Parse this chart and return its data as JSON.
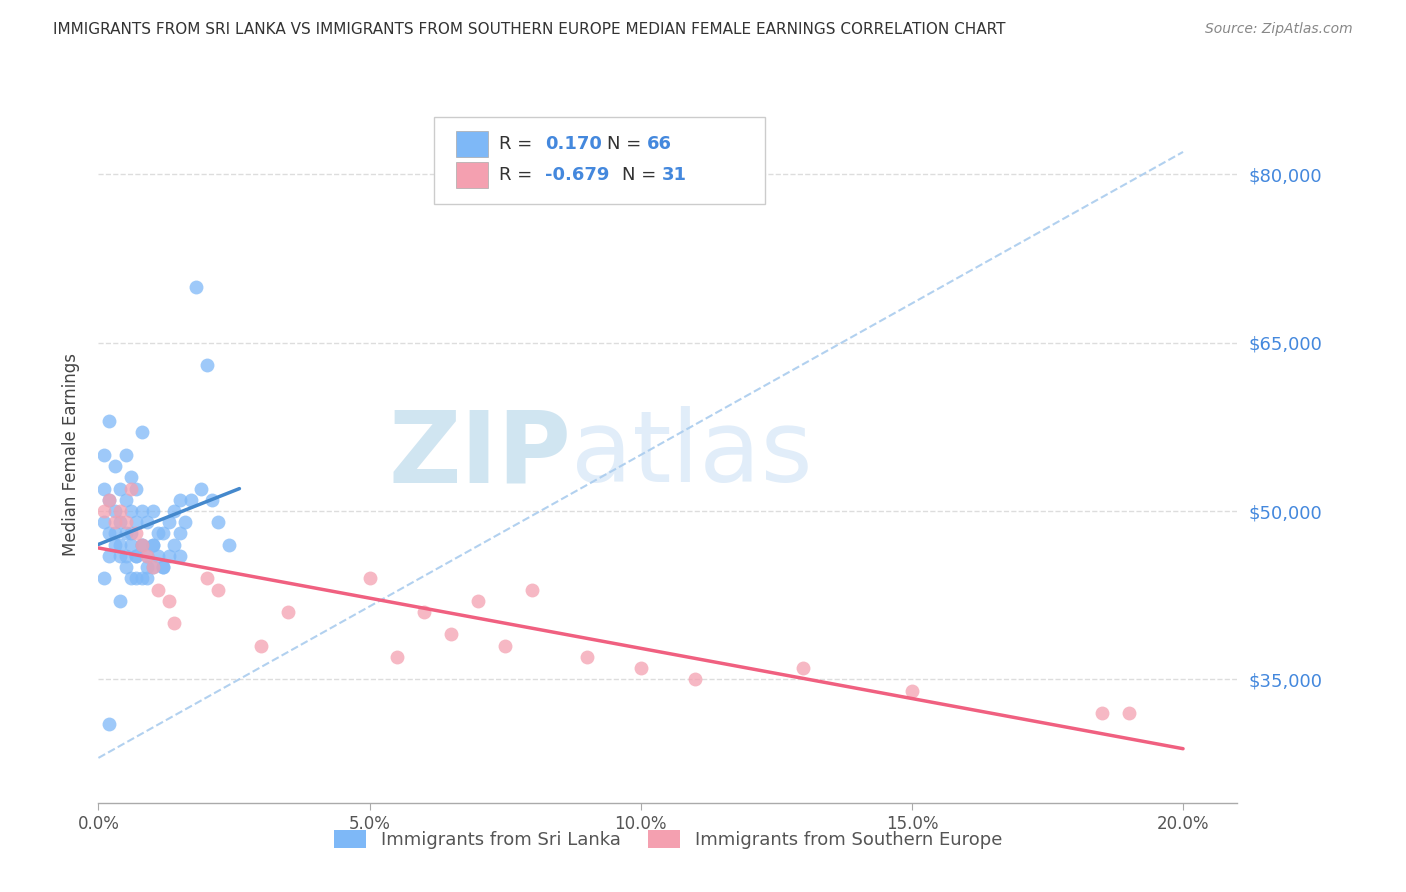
{
  "title": "IMMIGRANTS FROM SRI LANKA VS IMMIGRANTS FROM SOUTHERN EUROPE MEDIAN FEMALE EARNINGS CORRELATION CHART",
  "source": "Source: ZipAtlas.com",
  "ylabel": "Median Female Earnings",
  "xlim": [
    0.0,
    0.21
  ],
  "ylim": [
    24000,
    86000
  ],
  "y_ticks": [
    35000,
    50000,
    65000,
    80000
  ],
  "y_tick_labels": [
    "$35,000",
    "$50,000",
    "$65,000",
    "$80,000"
  ],
  "x_ticks": [
    0.0,
    0.05,
    0.1,
    0.15,
    0.2
  ],
  "x_tick_labels": [
    "0.0%",
    "5.0%",
    "10.0%",
    "15.0%",
    "20.0%"
  ],
  "sri_lanka_color": "#7EB8F7",
  "southern_europe_color": "#F4A0B0",
  "sri_lanka_line_color": "#4488CC",
  "southern_europe_line_color": "#F06080",
  "grey_line_color": "#AACCEE",
  "accent_color": "#4488DD",
  "title_color": "#333333",
  "source_color": "#888888",
  "legend1_label": "Immigrants from Sri Lanka",
  "legend2_label": "Immigrants from Southern Europe",
  "watermark_text": "ZIPatlas",
  "sri_lanka_x": [
    0.001,
    0.001,
    0.001,
    0.002,
    0.002,
    0.002,
    0.003,
    0.003,
    0.003,
    0.004,
    0.004,
    0.004,
    0.005,
    0.005,
    0.005,
    0.005,
    0.006,
    0.006,
    0.006,
    0.006,
    0.007,
    0.007,
    0.007,
    0.007,
    0.008,
    0.008,
    0.008,
    0.009,
    0.009,
    0.009,
    0.01,
    0.01,
    0.01,
    0.011,
    0.011,
    0.012,
    0.012,
    0.013,
    0.013,
    0.014,
    0.014,
    0.015,
    0.015,
    0.016,
    0.017,
    0.018,
    0.019,
    0.02,
    0.021,
    0.022,
    0.024,
    0.001,
    0.002,
    0.003,
    0.004,
    0.005,
    0.006,
    0.007,
    0.008,
    0.009,
    0.01,
    0.012,
    0.015,
    0.004,
    0.002,
    0.008
  ],
  "sri_lanka_y": [
    49000,
    52000,
    55000,
    48000,
    51000,
    58000,
    47000,
    50000,
    54000,
    46000,
    49000,
    52000,
    45000,
    48000,
    51000,
    55000,
    44000,
    47000,
    50000,
    53000,
    44000,
    46000,
    49000,
    52000,
    44000,
    47000,
    50000,
    44000,
    46000,
    49000,
    45000,
    47000,
    50000,
    46000,
    48000,
    45000,
    48000,
    46000,
    49000,
    47000,
    50000,
    48000,
    51000,
    49000,
    51000,
    70000,
    52000,
    63000,
    51000,
    49000,
    47000,
    44000,
    46000,
    48000,
    47000,
    46000,
    48000,
    46000,
    47000,
    45000,
    47000,
    45000,
    46000,
    42000,
    31000,
    57000
  ],
  "southern_europe_x": [
    0.001,
    0.002,
    0.003,
    0.004,
    0.005,
    0.006,
    0.007,
    0.008,
    0.009,
    0.01,
    0.011,
    0.013,
    0.014,
    0.02,
    0.022,
    0.03,
    0.035,
    0.05,
    0.055,
    0.06,
    0.065,
    0.07,
    0.075,
    0.08,
    0.09,
    0.1,
    0.11,
    0.13,
    0.15,
    0.185,
    0.19
  ],
  "southern_europe_y": [
    50000,
    51000,
    49000,
    50000,
    49000,
    52000,
    48000,
    47000,
    46000,
    45000,
    43000,
    42000,
    40000,
    44000,
    43000,
    38000,
    41000,
    44000,
    37000,
    41000,
    39000,
    42000,
    38000,
    43000,
    37000,
    36000,
    35000,
    36000,
    34000,
    32000,
    32000
  ]
}
